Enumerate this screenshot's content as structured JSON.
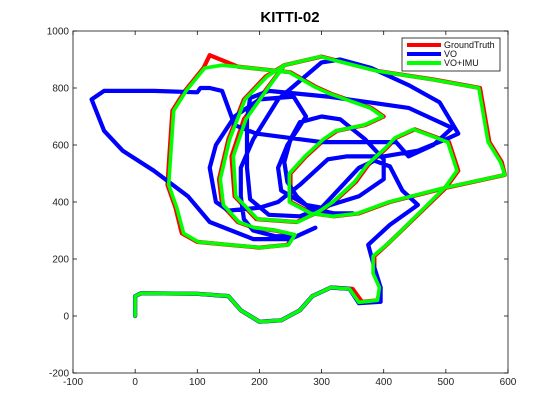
{
  "chart_data": {
    "type": "line",
    "title": "KITTI-02",
    "xlabel": "",
    "ylabel": "",
    "xlim": [
      -100,
      600
    ],
    "ylim": [
      -200,
      1000
    ],
    "xticks": [
      -100,
      0,
      100,
      200,
      300,
      400,
      500,
      600
    ],
    "yticks": [
      -200,
      0,
      200,
      400,
      600,
      800,
      1000
    ],
    "grid": false,
    "legend_position": "top-right",
    "series": [
      {
        "name": "GroundTruth",
        "color": "#ff0000",
        "points": [
          [
            0,
            0
          ],
          [
            0,
            70
          ],
          [
            10,
            80
          ],
          [
            100,
            78
          ],
          [
            150,
            70
          ],
          [
            170,
            20
          ],
          [
            200,
            -20
          ],
          [
            235,
            -15
          ],
          [
            265,
            20
          ],
          [
            285,
            70
          ],
          [
            315,
            100
          ],
          [
            350,
            95
          ],
          [
            365,
            50
          ],
          [
            390,
            55
          ],
          [
            395,
            100
          ],
          [
            385,
            150
          ],
          [
            385,
            210
          ],
          [
            410,
            260
          ],
          [
            500,
            450
          ],
          [
            595,
            495
          ],
          [
            590,
            540
          ],
          [
            570,
            610
          ],
          [
            555,
            800
          ],
          [
            480,
            830
          ],
          [
            390,
            860
          ],
          [
            300,
            910
          ],
          [
            240,
            880
          ],
          [
            175,
            690
          ],
          [
            155,
            560
          ],
          [
            160,
            420
          ],
          [
            195,
            340
          ],
          [
            260,
            330
          ],
          [
            300,
            370
          ],
          [
            320,
            400
          ],
          [
            355,
            470
          ],
          [
            375,
            530
          ],
          [
            405,
            590
          ],
          [
            420,
            625
          ],
          [
            450,
            655
          ],
          [
            505,
            610
          ],
          [
            520,
            510
          ],
          [
            500,
            450
          ],
          [
            410,
            400
          ],
          [
            360,
            360
          ],
          [
            320,
            350
          ],
          [
            285,
            360
          ],
          [
            250,
            400
          ],
          [
            250,
            500
          ],
          [
            275,
            560
          ],
          [
            305,
            620
          ],
          [
            325,
            650
          ],
          [
            370,
            670
          ],
          [
            400,
            700
          ],
          [
            380,
            730
          ],
          [
            315,
            780
          ],
          [
            290,
            805
          ],
          [
            250,
            855
          ],
          [
            165,
            875
          ],
          [
            120,
            915
          ],
          [
            110,
            870
          ],
          [
            80,
            790
          ],
          [
            60,
            720
          ],
          [
            55,
            560
          ],
          [
            52,
            460
          ],
          [
            65,
            380
          ],
          [
            75,
            290
          ],
          [
            100,
            260
          ],
          [
            150,
            250
          ],
          [
            200,
            240
          ],
          [
            245,
            250
          ],
          [
            255,
            285
          ],
          [
            225,
            300
          ],
          [
            190,
            310
          ],
          [
            165,
            330
          ],
          [
            140,
            390
          ],
          [
            135,
            480
          ],
          [
            150,
            620
          ],
          [
            175,
            760
          ],
          [
            210,
            840
          ],
          [
            240,
            880
          ]
        ]
      },
      {
        "name": "VO",
        "color": "#0000ff",
        "points": [
          [
            0,
            0
          ],
          [
            0,
            70
          ],
          [
            10,
            80
          ],
          [
            100,
            78
          ],
          [
            150,
            70
          ],
          [
            170,
            20
          ],
          [
            200,
            -20
          ],
          [
            235,
            -15
          ],
          [
            265,
            20
          ],
          [
            285,
            70
          ],
          [
            315,
            100
          ],
          [
            345,
            95
          ],
          [
            360,
            45
          ],
          [
            395,
            50
          ],
          [
            395,
            100
          ],
          [
            385,
            170
          ],
          [
            375,
            250
          ],
          [
            410,
            320
          ],
          [
            455,
            390
          ],
          [
            430,
            440
          ],
          [
            410,
            525
          ],
          [
            385,
            545
          ],
          [
            360,
            520
          ],
          [
            330,
            450
          ],
          [
            300,
            380
          ],
          [
            265,
            350
          ],
          [
            215,
            355
          ],
          [
            185,
            410
          ],
          [
            180,
            520
          ],
          [
            180,
            620
          ],
          [
            180,
            690
          ],
          [
            185,
            765
          ],
          [
            215,
            790
          ],
          [
            310,
            770
          ],
          [
            440,
            730
          ],
          [
            510,
            660
          ],
          [
            480,
            600
          ],
          [
            440,
            560
          ],
          [
            420,
            610
          ],
          [
            300,
            610
          ],
          [
            195,
            640
          ],
          [
            160,
            670
          ],
          [
            140,
            790
          ],
          [
            120,
            800
          ],
          [
            105,
            800
          ],
          [
            100,
            785
          ],
          [
            30,
            790
          ],
          [
            -50,
            790
          ],
          [
            -70,
            760
          ],
          [
            -50,
            650
          ],
          [
            -20,
            580
          ],
          [
            30,
            510
          ],
          [
            85,
            420
          ],
          [
            120,
            330
          ],
          [
            190,
            270
          ],
          [
            250,
            270
          ],
          [
            290,
            310
          ],
          [
            260,
            280
          ],
          [
            225,
            280
          ],
          [
            190,
            300
          ],
          [
            175,
            340
          ],
          [
            170,
            420
          ],
          [
            170,
            520
          ],
          [
            190,
            620
          ],
          [
            230,
            760
          ],
          [
            300,
            890
          ],
          [
            330,
            900
          ],
          [
            380,
            870
          ],
          [
            440,
            810
          ],
          [
            490,
            750
          ],
          [
            520,
            640
          ],
          [
            500,
            620
          ],
          [
            455,
            580
          ],
          [
            400,
            560
          ],
          [
            340,
            560
          ],
          [
            310,
            550
          ],
          [
            265,
            460
          ],
          [
            230,
            400
          ],
          [
            200,
            380
          ],
          [
            150,
            370
          ],
          [
            130,
            400
          ],
          [
            120,
            520
          ],
          [
            130,
            600
          ],
          [
            160,
            700
          ],
          [
            200,
            760
          ],
          [
            255,
            770
          ],
          [
            275,
            700
          ],
          [
            260,
            650
          ],
          [
            245,
            600
          ],
          [
            230,
            520
          ],
          [
            235,
            440
          ],
          [
            275,
            390
          ],
          [
            300,
            380
          ],
          [
            360,
            420
          ],
          [
            400,
            480
          ],
          [
            400,
            550
          ],
          [
            370,
            620
          ],
          [
            330,
            690
          ],
          [
            300,
            700
          ],
          [
            265,
            680
          ],
          [
            250,
            620
          ],
          [
            240,
            540
          ],
          [
            245,
            470
          ],
          [
            260,
            420
          ],
          [
            280,
            380
          ],
          [
            320,
            360
          ],
          [
            350,
            360
          ]
        ]
      },
      {
        "name": "VO+IMU",
        "color": "#00ff00",
        "points": [
          [
            0,
            0
          ],
          [
            0,
            70
          ],
          [
            10,
            80
          ],
          [
            100,
            78
          ],
          [
            150,
            70
          ],
          [
            170,
            20
          ],
          [
            200,
            -20
          ],
          [
            235,
            -15
          ],
          [
            265,
            20
          ],
          [
            285,
            70
          ],
          [
            315,
            100
          ],
          [
            345,
            95
          ],
          [
            360,
            48
          ],
          [
            390,
            55
          ],
          [
            393,
            100
          ],
          [
            383,
            150
          ],
          [
            383,
            210
          ],
          [
            410,
            260
          ],
          [
            498,
            450
          ],
          [
            595,
            495
          ],
          [
            588,
            540
          ],
          [
            568,
            610
          ],
          [
            553,
            800
          ],
          [
            478,
            830
          ],
          [
            388,
            860
          ],
          [
            298,
            910
          ],
          [
            240,
            880
          ],
          [
            178,
            690
          ],
          [
            158,
            560
          ],
          [
            162,
            420
          ],
          [
            197,
            340
          ],
          [
            262,
            330
          ],
          [
            298,
            370
          ],
          [
            318,
            400
          ],
          [
            353,
            470
          ],
          [
            373,
            530
          ],
          [
            403,
            590
          ],
          [
            418,
            625
          ],
          [
            448,
            655
          ],
          [
            503,
            610
          ],
          [
            518,
            510
          ],
          [
            498,
            450
          ],
          [
            408,
            400
          ],
          [
            358,
            360
          ],
          [
            318,
            350
          ],
          [
            283,
            360
          ],
          [
            248,
            400
          ],
          [
            248,
            500
          ],
          [
            273,
            560
          ],
          [
            303,
            620
          ],
          [
            323,
            650
          ],
          [
            368,
            670
          ],
          [
            398,
            700
          ],
          [
            378,
            730
          ],
          [
            313,
            780
          ],
          [
            288,
            805
          ],
          [
            248,
            855
          ],
          [
            163,
            875
          ],
          [
            140,
            880
          ],
          [
            112,
            870
          ],
          [
            82,
            790
          ],
          [
            62,
            720
          ],
          [
            57,
            560
          ],
          [
            54,
            460
          ],
          [
            67,
            380
          ],
          [
            78,
            290
          ],
          [
            102,
            260
          ],
          [
            152,
            250
          ],
          [
            202,
            240
          ],
          [
            247,
            250
          ],
          [
            257,
            285
          ],
          [
            227,
            300
          ],
          [
            192,
            310
          ],
          [
            167,
            330
          ],
          [
            142,
            390
          ],
          [
            137,
            480
          ],
          [
            152,
            620
          ],
          [
            177,
            760
          ],
          [
            212,
            840
          ],
          [
            240,
            880
          ]
        ]
      }
    ]
  }
}
